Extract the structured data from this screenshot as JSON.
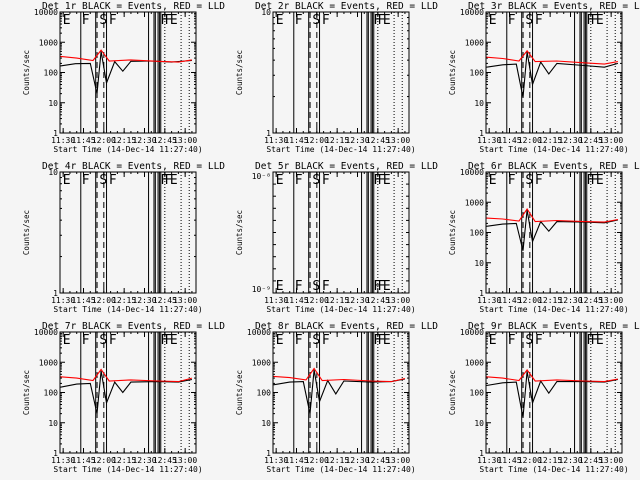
{
  "chart_data": [
    {
      "type": "line",
      "title": "Det 1r BLACK = Events, RED = LLD",
      "ylabel": "Counts/sec",
      "xlabel": "Start Time (14-Dec-14 11:27:40)",
      "yscale": "log",
      "ylim": [
        1,
        10000
      ],
      "yticks": [
        "1",
        "10",
        "100",
        "1000",
        "10000"
      ],
      "xticks": [
        "11:30",
        "11:45",
        "12:00",
        "12:15",
        "12:30",
        "12:45",
        "13:00"
      ],
      "flag_labels": [
        "E",
        "F",
        "S",
        "F",
        "F",
        "F",
        "E"
      ],
      "series": [
        {
          "name": "BLACK = Events",
          "color": "#000000",
          "values": [
            {
              "x": "11:28",
              "y": 165
            },
            {
              "x": "11:39",
              "y": 195
            },
            {
              "x": "11:50",
              "y": 200
            },
            {
              "x": "11:55",
              "y": 20
            },
            {
              "x": "11:58",
              "y": 500
            },
            {
              "x": "12:02",
              "y": 45
            },
            {
              "x": "12:08",
              "y": 230
            },
            {
              "x": "12:14",
              "y": 110
            },
            {
              "x": "12:20",
              "y": 235
            },
            {
              "x": "12:35",
              "y": 240
            },
            {
              "x": "12:50",
              "y": 220
            },
            {
              "x": "13:05",
              "y": 250
            }
          ]
        },
        {
          "name": "RED = LLD",
          "color": "#ff0000",
          "values": [
            {
              "x": "11:28",
              "y": 340
            },
            {
              "x": "11:40",
              "y": 300
            },
            {
              "x": "11:52",
              "y": 250
            },
            {
              "x": "11:58",
              "y": 550
            },
            {
              "x": "12:04",
              "y": 240
            },
            {
              "x": "12:20",
              "y": 260
            },
            {
              "x": "12:40",
              "y": 235
            },
            {
              "x": "12:55",
              "y": 220
            },
            {
              "x": "13:05",
              "y": 260
            }
          ]
        }
      ]
    },
    {
      "type": "line",
      "title": "Det 2r BLACK = Events, RED = LLD",
      "ylabel": "Counts/sec",
      "xlabel": "Start Time (14-Dec-14 11:27:40)",
      "yscale": "log",
      "ylim": [
        1,
        10
      ],
      "yticks": [
        "1",
        "10"
      ],
      "xticks": [
        "11:30",
        "11:45",
        "12:00",
        "12:15",
        "12:30",
        "12:45",
        "13:00"
      ],
      "flag_labels": [
        "E",
        "F",
        "S",
        "F",
        "F",
        "F",
        "E"
      ],
      "series": []
    },
    {
      "type": "line",
      "title": "Det 3r BLACK = Events, RED = LLD",
      "ylabel": "Counts/sec",
      "xlabel": "Start Time (14-Dec-14 11:27:40)",
      "yscale": "log",
      "ylim": [
        1,
        10000
      ],
      "yticks": [
        "1",
        "10",
        "100",
        "1000",
        "10000"
      ],
      "xticks": [
        "11:30",
        "11:45",
        "12:00",
        "12:15",
        "12:30",
        "12:45",
        "13:00"
      ],
      "flag_labels": [
        "E",
        "F",
        "S",
        "F",
        "F",
        "F",
        "E"
      ],
      "series": [
        {
          "name": "BLACK = Events",
          "color": "#000000",
          "values": [
            {
              "x": "11:28",
              "y": 150
            },
            {
              "x": "11:40",
              "y": 180
            },
            {
              "x": "11:50",
              "y": 190
            },
            {
              "x": "11:55",
              "y": 15
            },
            {
              "x": "11:58",
              "y": 480
            },
            {
              "x": "12:02",
              "y": 40
            },
            {
              "x": "12:08",
              "y": 220
            },
            {
              "x": "12:14",
              "y": 90
            },
            {
              "x": "12:20",
              "y": 200
            },
            {
              "x": "12:40",
              "y": 170
            },
            {
              "x": "12:55",
              "y": 150
            },
            {
              "x": "13:05",
              "y": 200
            }
          ]
        },
        {
          "name": "RED = LLD",
          "color": "#ff0000",
          "values": [
            {
              "x": "11:28",
              "y": 320
            },
            {
              "x": "11:40",
              "y": 290
            },
            {
              "x": "11:52",
              "y": 240
            },
            {
              "x": "11:58",
              "y": 520
            },
            {
              "x": "12:04",
              "y": 230
            },
            {
              "x": "12:20",
              "y": 240
            },
            {
              "x": "12:40",
              "y": 210
            },
            {
              "x": "12:55",
              "y": 190
            },
            {
              "x": "13:05",
              "y": 230
            }
          ]
        }
      ]
    },
    {
      "type": "line",
      "title": "Det 4r BLACK = Events, RED = LLD",
      "ylabel": "Counts/sec",
      "xlabel": "Start Time (14-Dec-14 11:27:40)",
      "yscale": "log",
      "ylim": [
        1,
        10
      ],
      "yticks": [
        "1",
        "10"
      ],
      "xticks": [
        "11:30",
        "11:45",
        "12:00",
        "12:15",
        "12:30",
        "12:45",
        "13:00"
      ],
      "flag_labels": [
        "E",
        "F",
        "S",
        "F",
        "F",
        "F",
        "E"
      ],
      "series": []
    },
    {
      "type": "line",
      "title": "Det 5r BLACK = Events, RED = LLD",
      "ylabel": "Counts/sec",
      "xlabel": "Start Time (14-Dec-14 11:27:40)",
      "yscale": "log",
      "ylim": [
        1e-09,
        1e-08
      ],
      "ytick_labels_shown": [
        "10⁻⁸",
        "10⁻⁹"
      ],
      "xticks": [
        "11:30",
        "11:45",
        "12:00",
        "12:15",
        "12:30",
        "12:45",
        "13:00"
      ],
      "flag_labels": [
        "E",
        "F",
        "S",
        "F",
        "F",
        "F",
        "E"
      ],
      "series": []
    },
    {
      "type": "line",
      "title": "Det 6r BLACK = Events, RED = LLD",
      "ylabel": "Counts/sec",
      "xlabel": "Start Time (14-Dec-14 11:27:40)",
      "yscale": "log",
      "ylim": [
        1,
        10000
      ],
      "yticks": [
        "1",
        "10",
        "100",
        "1000",
        "10000"
      ],
      "xticks": [
        "11:30",
        "11:45",
        "12:00",
        "12:15",
        "12:30",
        "12:45",
        "13:00"
      ],
      "flag_labels": [
        "E",
        "F",
        "S",
        "F",
        "F",
        "F",
        "E"
      ],
      "series": [
        {
          "name": "BLACK = Events",
          "color": "#000000",
          "values": [
            {
              "x": "11:28",
              "y": 160
            },
            {
              "x": "11:40",
              "y": 190
            },
            {
              "x": "11:50",
              "y": 200
            },
            {
              "x": "11:55",
              "y": 25
            },
            {
              "x": "11:58",
              "y": 550
            },
            {
              "x": "12:02",
              "y": 50
            },
            {
              "x": "12:08",
              "y": 230
            },
            {
              "x": "12:14",
              "y": 110
            },
            {
              "x": "12:20",
              "y": 230
            },
            {
              "x": "12:40",
              "y": 220
            },
            {
              "x": "12:55",
              "y": 210
            },
            {
              "x": "13:05",
              "y": 260
            }
          ]
        },
        {
          "name": "RED = LLD",
          "color": "#ff0000",
          "values": [
            {
              "x": "11:28",
              "y": 300
            },
            {
              "x": "11:40",
              "y": 280
            },
            {
              "x": "11:52",
              "y": 240
            },
            {
              "x": "11:58",
              "y": 600
            },
            {
              "x": "12:04",
              "y": 230
            },
            {
              "x": "12:20",
              "y": 250
            },
            {
              "x": "12:40",
              "y": 230
            },
            {
              "x": "12:55",
              "y": 220
            },
            {
              "x": "13:05",
              "y": 270
            }
          ]
        }
      ]
    },
    {
      "type": "line",
      "title": "Det 7r BLACK = Events, RED = LLD",
      "ylabel": "Counts/sec",
      "xlabel": "Start Time (14-Dec-14 11:27:40)",
      "yscale": "log",
      "ylim": [
        1,
        10000
      ],
      "yticks": [
        "1",
        "10",
        "100",
        "1000",
        "10000"
      ],
      "xticks": [
        "11:30",
        "11:45",
        "12:00",
        "12:15",
        "12:30",
        "12:45",
        "13:00"
      ],
      "flag_labels": [
        "E",
        "F",
        "S",
        "F",
        "F",
        "F",
        "E"
      ],
      "series": [
        {
          "name": "BLACK = Events",
          "color": "#000000",
          "values": [
            {
              "x": "11:28",
              "y": 150
            },
            {
              "x": "11:40",
              "y": 190
            },
            {
              "x": "11:50",
              "y": 200
            },
            {
              "x": "11:55",
              "y": 20
            },
            {
              "x": "11:58",
              "y": 520
            },
            {
              "x": "12:02",
              "y": 45
            },
            {
              "x": "12:08",
              "y": 220
            },
            {
              "x": "12:14",
              "y": 100
            },
            {
              "x": "12:20",
              "y": 220
            },
            {
              "x": "12:40",
              "y": 230
            },
            {
              "x": "12:55",
              "y": 220
            },
            {
              "x": "13:05",
              "y": 270
            }
          ]
        },
        {
          "name": "RED = LLD",
          "color": "#ff0000",
          "values": [
            {
              "x": "11:28",
              "y": 330
            },
            {
              "x": "11:40",
              "y": 300
            },
            {
              "x": "11:52",
              "y": 250
            },
            {
              "x": "11:58",
              "y": 580
            },
            {
              "x": "12:04",
              "y": 240
            },
            {
              "x": "12:20",
              "y": 260
            },
            {
              "x": "12:40",
              "y": 240
            },
            {
              "x": "12:55",
              "y": 230
            },
            {
              "x": "13:05",
              "y": 300
            }
          ]
        }
      ]
    },
    {
      "type": "line",
      "title": "Det 8r BLACK = Events, RED = LLD",
      "ylabel": "Counts/sec",
      "xlabel": "Start Time (14-Dec-14 11:27:40)",
      "yscale": "log",
      "ylim": [
        1,
        10000
      ],
      "yticks": [
        "1",
        "10",
        "100",
        "1000",
        "10000"
      ],
      "xticks": [
        "11:30",
        "11:45",
        "12:00",
        "12:15",
        "12:30",
        "12:45",
        "13:00"
      ],
      "flag_labels": [
        "E",
        "F",
        "S",
        "F",
        "F",
        "F",
        "E"
      ],
      "series": [
        {
          "name": "BLACK = Events",
          "color": "#000000",
          "values": [
            {
              "x": "11:28",
              "y": 180
            },
            {
              "x": "11:40",
              "y": 220
            },
            {
              "x": "11:50",
              "y": 230
            },
            {
              "x": "11:55",
              "y": 20
            },
            {
              "x": "11:58",
              "y": 560
            },
            {
              "x": "12:02",
              "y": 50
            },
            {
              "x": "12:08",
              "y": 250
            },
            {
              "x": "12:14",
              "y": 90
            },
            {
              "x": "12:20",
              "y": 240
            },
            {
              "x": "12:40",
              "y": 220
            },
            {
              "x": "12:55",
              "y": 230
            },
            {
              "x": "13:05",
              "y": 280
            }
          ]
        },
        {
          "name": "RED = LLD",
          "color": "#ff0000",
          "values": [
            {
              "x": "11:28",
              "y": 340
            },
            {
              "x": "11:40",
              "y": 310
            },
            {
              "x": "11:52",
              "y": 260
            },
            {
              "x": "11:58",
              "y": 620
            },
            {
              "x": "12:04",
              "y": 250
            },
            {
              "x": "12:20",
              "y": 270
            },
            {
              "x": "12:40",
              "y": 240
            },
            {
              "x": "12:55",
              "y": 230
            },
            {
              "x": "13:05",
              "y": 290
            }
          ]
        }
      ]
    },
    {
      "type": "line",
      "title": "Det 9r BLACK = Events, RED = LLD",
      "ylabel": "Counts/sec",
      "xlabel": "Start Time (14-Dec-14 11:27:40)",
      "yscale": "log",
      "ylim": [
        1,
        10000
      ],
      "yticks": [
        "1",
        "10",
        "100",
        "1000",
        "10000"
      ],
      "xticks": [
        "11:30",
        "11:45",
        "12:00",
        "12:15",
        "12:30",
        "12:45",
        "13:00"
      ],
      "flag_labels": [
        "E",
        "F",
        "S",
        "F",
        "F",
        "F",
        "E"
      ],
      "series": [
        {
          "name": "BLACK = Events",
          "color": "#000000",
          "values": [
            {
              "x": "11:28",
              "y": 170
            },
            {
              "x": "11:40",
              "y": 210
            },
            {
              "x": "11:50",
              "y": 220
            },
            {
              "x": "11:55",
              "y": 15
            },
            {
              "x": "11:58",
              "y": 500
            },
            {
              "x": "12:02",
              "y": 45
            },
            {
              "x": "12:08",
              "y": 240
            },
            {
              "x": "12:14",
              "y": 95
            },
            {
              "x": "12:20",
              "y": 230
            },
            {
              "x": "12:40",
              "y": 230
            },
            {
              "x": "12:55",
              "y": 220
            },
            {
              "x": "13:05",
              "y": 270
            }
          ]
        },
        {
          "name": "RED = LLD",
          "color": "#ff0000",
          "values": [
            {
              "x": "11:28",
              "y": 330
            },
            {
              "x": "11:40",
              "y": 300
            },
            {
              "x": "11:52",
              "y": 250
            },
            {
              "x": "11:58",
              "y": 560
            },
            {
              "x": "12:04",
              "y": 240
            },
            {
              "x": "12:20",
              "y": 260
            },
            {
              "x": "12:40",
              "y": 240
            },
            {
              "x": "12:55",
              "y": 230
            },
            {
              "x": "13:05",
              "y": 280
            }
          ]
        }
      ]
    }
  ],
  "time_grid": {
    "x_range": [
      "11:27:40",
      "13:08"
    ],
    "solid_lines": [
      "11:43",
      "11:54",
      "12:02",
      "12:33",
      "12:37",
      "12:38",
      "12:40",
      "12:41",
      "12:42"
    ],
    "dashed_lines": [
      "11:55",
      "12:00"
    ],
    "dotted_lines": [
      "12:45",
      "12:57",
      "13:03"
    ],
    "flag_positions": [
      "11:29",
      "11:43",
      "11:56",
      "12:03",
      "12:41",
      "12:44",
      "12:48"
    ]
  }
}
